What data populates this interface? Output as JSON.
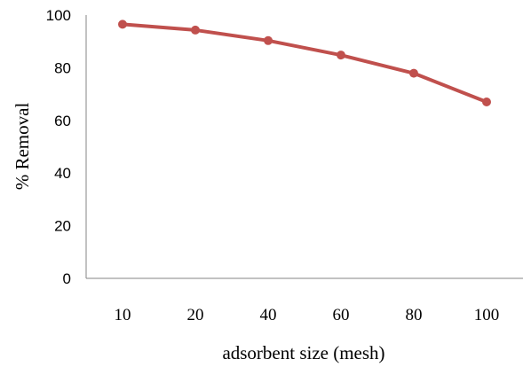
{
  "chart_data": {
    "type": "line",
    "categories": [
      "10",
      "20",
      "40",
      "60",
      "80",
      "100"
    ],
    "series": [
      {
        "values": [
          96.5,
          94.3,
          90.3,
          84.8,
          77.9,
          67.0
        ],
        "color": "#c0504d"
      }
    ],
    "xlabel": "adsorbent size (mesh)",
    "ylabel": "% Removal",
    "ylim": [
      0,
      100
    ],
    "yticks": [
      "0",
      "20",
      "40",
      "60",
      "80",
      "100"
    ],
    "grid": false,
    "legend": "none"
  }
}
